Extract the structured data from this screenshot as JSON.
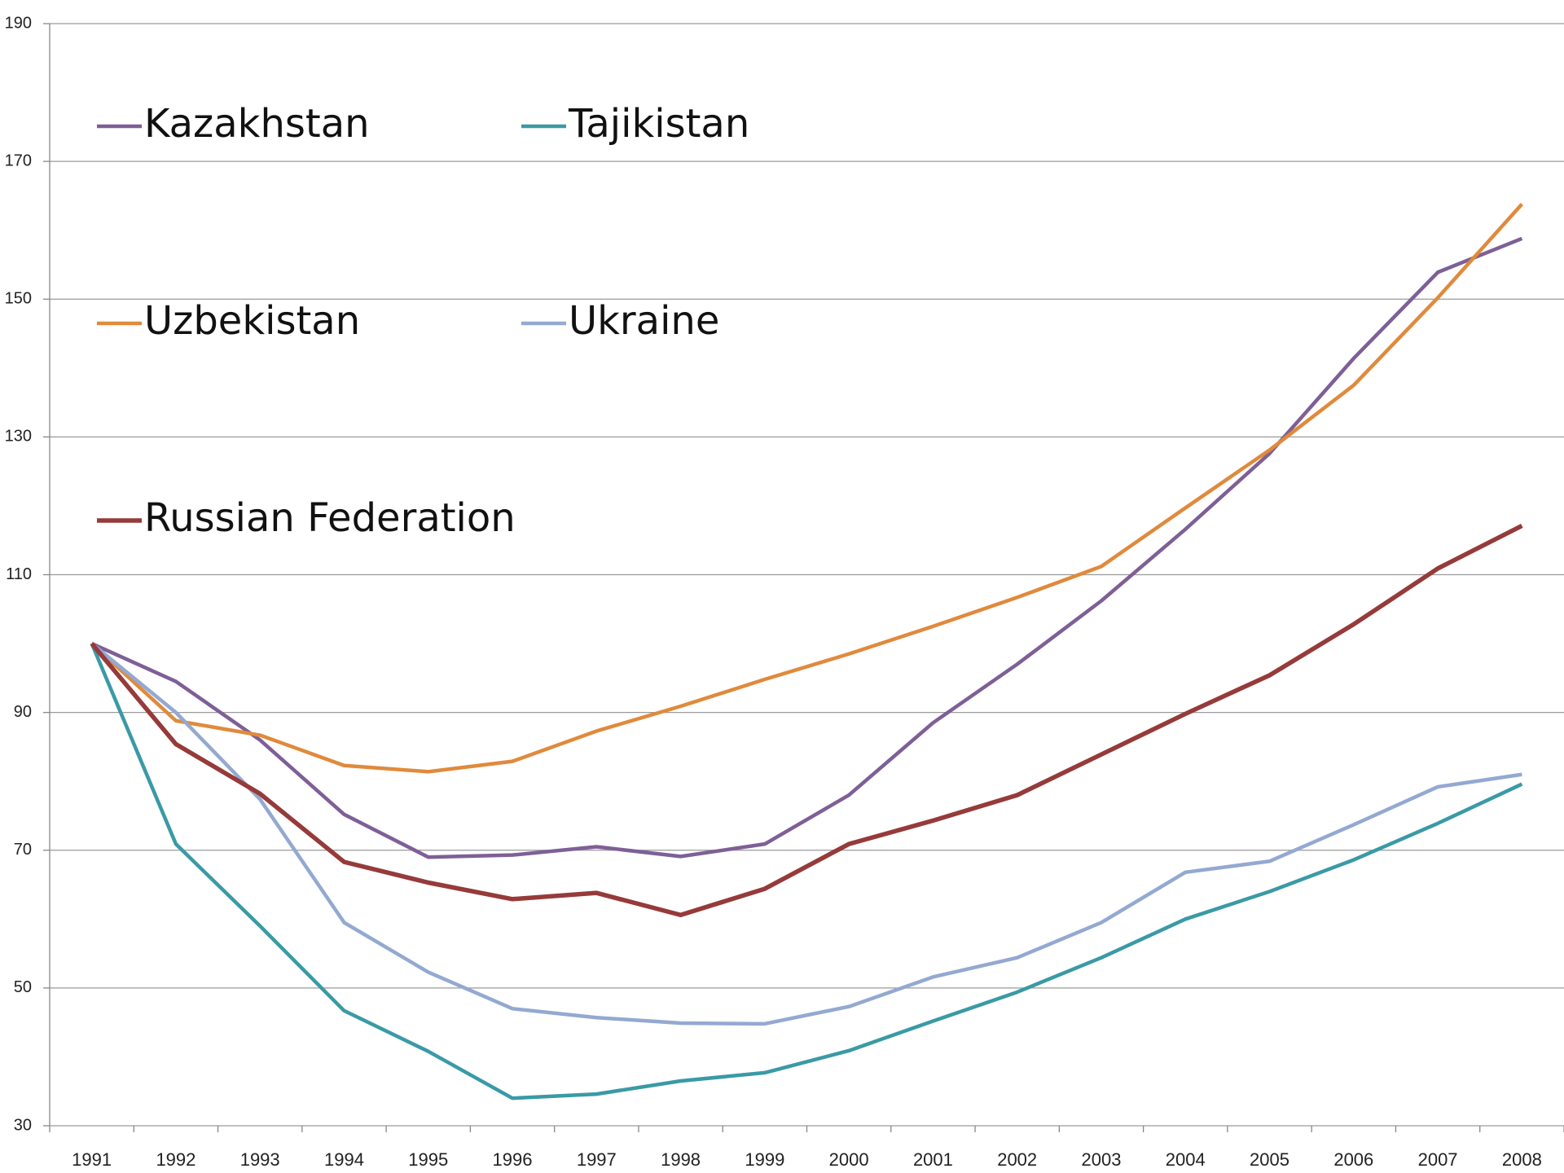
{
  "chart_data": {
    "type": "line",
    "categories": [
      "1991",
      "1992",
      "1993",
      "1994",
      "1995",
      "1996",
      "1997",
      "1998",
      "1999",
      "2000",
      "2001",
      "2002",
      "2003",
      "2004",
      "2005",
      "2006",
      "2007",
      "2008"
    ],
    "series": [
      {
        "name": "Kazakhstan",
        "color": "#7e5f96",
        "values": [
          100,
          94.5,
          86,
          75.2,
          69,
          69.3,
          70.5,
          69.1,
          70.9,
          78,
          88.5,
          97,
          106.2,
          116.6,
          127.6,
          141.4,
          153.9,
          158.8
        ]
      },
      {
        "name": "Tajikistan",
        "color": "#3a9aa6",
        "values": [
          100,
          70.9,
          59,
          46.7,
          40.8,
          34,
          34.6,
          36.5,
          37.7,
          40.9,
          45.2,
          49.4,
          54.4,
          60,
          64,
          68.6,
          73.9,
          79.6
        ]
      },
      {
        "name": "Uzbekistan",
        "color": "#e08a3c",
        "values": [
          100,
          88.8,
          86.7,
          82.3,
          81.4,
          82.9,
          87.3,
          90.9,
          94.8,
          98.5,
          102.5,
          106.7,
          111.2,
          119.7,
          128.1,
          137.5,
          150.2,
          163.8
        ]
      },
      {
        "name": "Ukraine",
        "color": "#93a9d1",
        "values": [
          100,
          90,
          77.4,
          59.5,
          52.3,
          47,
          45.7,
          44.9,
          44.8,
          47.3,
          51.6,
          54.4,
          59.5,
          66.8,
          68.4,
          73.7,
          79.2,
          81
        ]
      },
      {
        "name": "Russian Federation",
        "color": "#963a3a",
        "values": [
          100,
          85.4,
          78.2,
          68.3,
          65.3,
          62.9,
          63.8,
          60.6,
          64.4,
          70.9,
          74.3,
          78,
          83.9,
          89.8,
          95.4,
          102.8,
          110.9,
          117.1
        ]
      }
    ],
    "ylim": [
      30,
      190
    ],
    "yticks": [
      30,
      50,
      70,
      90,
      110,
      130,
      150,
      170,
      190
    ],
    "grid": true
  }
}
